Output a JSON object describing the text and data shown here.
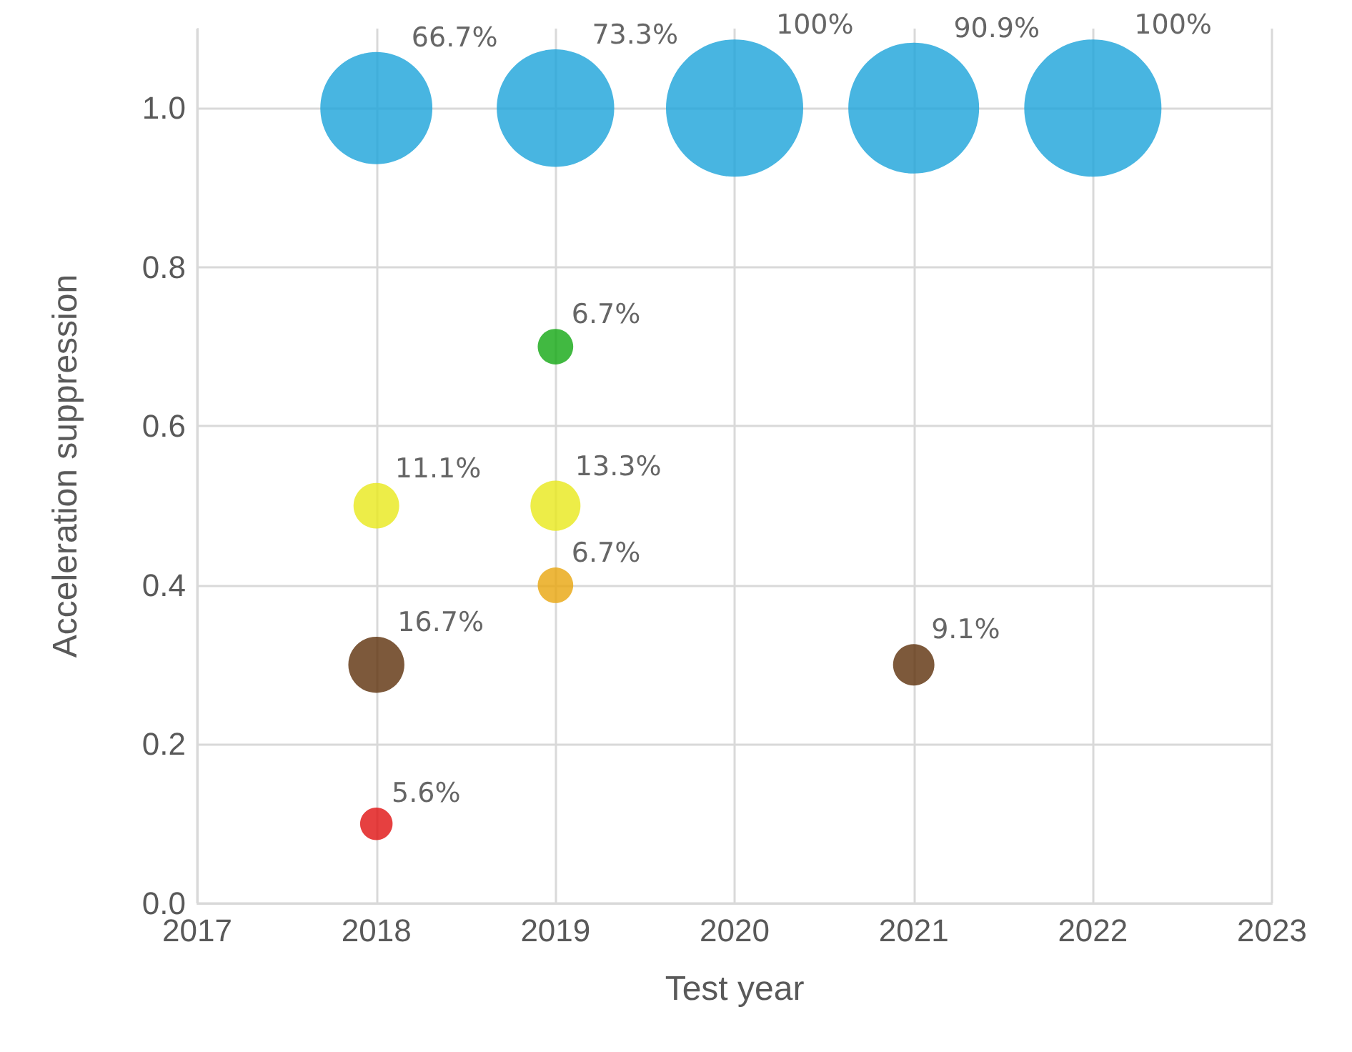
{
  "chart_data": {
    "type": "bubble",
    "xlabel": "Test year",
    "ylabel": "Acceleration suppression",
    "x": [
      2018,
      2019,
      2020,
      2021,
      2022,
      2019,
      2018,
      2019,
      2019,
      2018,
      2021,
      2018
    ],
    "values": [
      1.0,
      1.0,
      1.0,
      1.0,
      1.0,
      0.7,
      0.5,
      0.5,
      0.4,
      0.3,
      0.3,
      0.1
    ],
    "sizes": [
      0.667,
      0.733,
      1,
      0.909,
      1,
      0.067,
      0.111,
      0.133,
      0.067,
      0.167,
      0.091,
      0.056
    ],
    "value_labels": [
      "66.7%",
      "73.3%",
      "100%",
      "90.9%",
      "100%",
      "6.7%",
      "11.1%",
      "13.3%",
      "6.7%",
      "16.7%",
      "9.1%",
      "5.6%"
    ],
    "colors": [
      "#1aa3d9",
      "#1aa3d9",
      "#1aa3d9",
      "#1aa3d9",
      "#1aa3d9",
      "#11a811",
      "#e8e81a",
      "#e8e81a",
      "#e8a50c",
      "#5c300a",
      "#5c300a",
      "#e01010"
    ],
    "xlim": [
      2017,
      2023
    ],
    "xticks": [
      2017,
      2018,
      2019,
      2020,
      2021,
      2022,
      2023
    ],
    "ylim": [
      0,
      1.1
    ],
    "yticks": [
      {
        "value": 0,
        "label": "0.0"
      },
      {
        "value": 0.2,
        "label": "0.2"
      },
      {
        "value": 0.4,
        "label": "0.4"
      },
      {
        "value": 0.6,
        "label": "0.6"
      },
      {
        "value": 0.8,
        "label": "0.8"
      },
      {
        "value": 1,
        "label": "1.0"
      }
    ],
    "grid": true
  }
}
